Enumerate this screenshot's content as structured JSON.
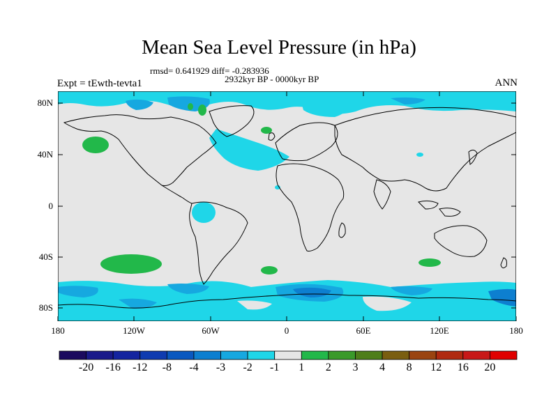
{
  "title": "Mean Sea Level Pressure (in hPa)",
  "stats": "rmsd= 0.641929 diff= -0.283936",
  "period": "2932kyr BP - 0000kyr BP",
  "experiment": "Expt = tEwth-tevta1",
  "season": "ANN",
  "lat_labels": [
    "80N",
    "40N",
    "0",
    "40S",
    "80S"
  ],
  "lon_labels": [
    "180",
    "120W",
    "60W",
    "0",
    "60E",
    "120E",
    "180"
  ],
  "colorbar": {
    "labels": [
      "-20",
      "-16",
      "-12",
      "-8",
      "-4",
      "-3",
      "-2",
      "-1",
      "1",
      "2",
      "3",
      "4",
      "8",
      "12",
      "16",
      "20"
    ],
    "colors": [
      "#1b0a5e",
      "#1a1a8a",
      "#14249f",
      "#0f3bb0",
      "#0a58c0",
      "#0d7fd0",
      "#16a8e0",
      "#1fd6e8",
      "#e6e6e6",
      "#22b84a",
      "#3a9a2a",
      "#4e7e1a",
      "#7a5e10",
      "#9a4410",
      "#b02a10",
      "#c81818",
      "#e00000"
    ]
  },
  "map_colors": {
    "background": "#e6e6e6",
    "neg_1": "#1fd6e8",
    "neg_2": "#16a8e0",
    "neg_3": "#0d7fd0",
    "pos_1": "#22b84a"
  }
}
